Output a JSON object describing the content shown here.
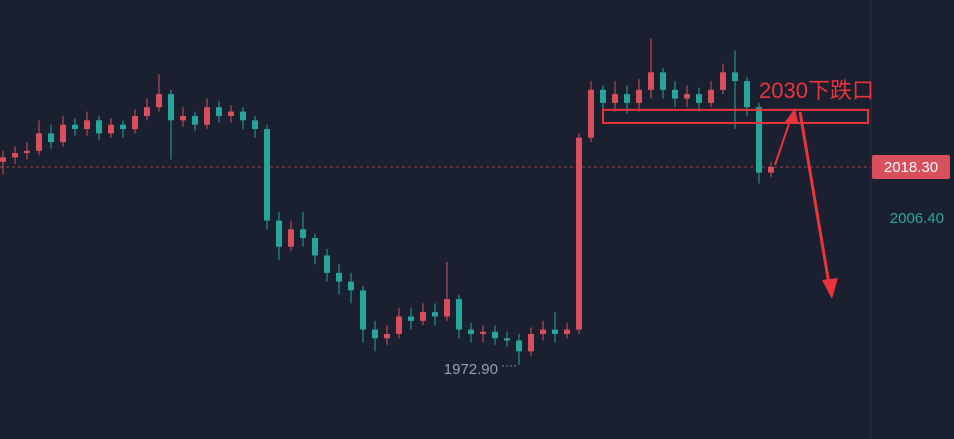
{
  "chart_data": {
    "type": "candlestick",
    "open": [
      2019.5,
      2020.5,
      2021.5,
      2022,
      2026,
      2024,
      2028,
      2027,
      2029,
      2026,
      2028,
      2027,
      2030,
      2032,
      2035,
      2029,
      2030,
      2028,
      2032,
      2030,
      2031,
      2029,
      2027,
      2006,
      2000,
      2004,
      2002,
      1998,
      1994,
      1992,
      1990,
      1981,
      1979,
      1980,
      1984,
      1983,
      1985,
      1984,
      1988,
      1981,
      1980,
      1980.5,
      1979,
      1978.5,
      1976,
      1980,
      1981,
      1980,
      1981,
      2025,
      2036,
      2033,
      2035,
      2033,
      2036,
      2040,
      2036,
      2034,
      2035,
      2033,
      2036,
      2040,
      2038,
      2032,
      2017
    ],
    "high": [
      2022,
      2023,
      2024,
      2029,
      2028,
      2030,
      2029.5,
      2031,
      2030,
      2029.5,
      2029,
      2031.5,
      2034,
      2039.6,
      2036,
      2032,
      2031,
      2034,
      2033.5,
      2032.5,
      2032,
      2030,
      2028,
      2008,
      2006,
      2008,
      2003,
      1999.5,
      1996,
      1994,
      1991,
      1983,
      1982,
      1986,
      1986,
      1987,
      1987,
      1996.5,
      1989,
      1982.5,
      1982,
      1982,
      1980.5,
      1980,
      1981.5,
      1983,
      1985,
      1982.5,
      2026,
      2038,
      2037,
      2038,
      2037,
      2038.5,
      2047.8,
      2041,
      2038,
      2037,
      2036.5,
      2038,
      2042,
      2045,
      2039,
      2033,
      2019.5
    ],
    "low": [
      2016.5,
      2019,
      2020,
      2021,
      2022.5,
      2023,
      2025.5,
      2025.5,
      2024.5,
      2025,
      2025,
      2026,
      2029,
      2031,
      2020,
      2027.5,
      2026.5,
      2027,
      2028.5,
      2028.5,
      2027,
      2025,
      2004,
      1997,
      1999,
      2000,
      1996,
      1992,
      1989,
      1987,
      1978,
      1976,
      1977.5,
      1979,
      1981,
      1982,
      1982,
      1983,
      1979,
      1978,
      1978,
      1977.5,
      1977,
      1972.9,
      1975,
      1978.5,
      1978,
      1979,
      1980,
      2024,
      2030,
      2031,
      2030.5,
      2031,
      2034,
      2034,
      2032,
      2032,
      2031,
      2032,
      2035,
      2027,
      2030,
      2014.5,
      2016
    ],
    "close": [
      2020.5,
      2021.5,
      2022,
      2026,
      2024,
      2028,
      2027,
      2029,
      2026,
      2028,
      2027,
      2030,
      2032,
      2035,
      2029,
      2030,
      2028,
      2032,
      2030,
      2031,
      2029,
      2027,
      2006,
      2000,
      2004,
      2002,
      1998,
      1994,
      1992,
      1990,
      1981,
      1979,
      1980,
      1984,
      1983,
      1985,
      1984,
      1988,
      1981,
      1980,
      1980.5,
      1979,
      1978.5,
      1976,
      1980,
      1981,
      1980,
      1981,
      2025,
      2036,
      2033,
      2035,
      2033,
      2036,
      2040,
      2036,
      2034,
      2035,
      2033,
      2036,
      2040,
      2038,
      2032,
      2017,
      2018.3
    ],
    "up_color": "#d9505c",
    "down_color": "#26a69a",
    "ylim": [
      1955.9,
      2056.6
    ],
    "yticks": [
      {
        "value": 2006.4,
        "label": "2006.40"
      }
    ],
    "last_price": {
      "value": 2018.3,
      "label": "2018.30"
    },
    "low_label": {
      "value": 1972.9,
      "label": "1972.90"
    },
    "zone": [
      2028.4,
      2031.4
    ],
    "annotation": "2030下跌口"
  }
}
